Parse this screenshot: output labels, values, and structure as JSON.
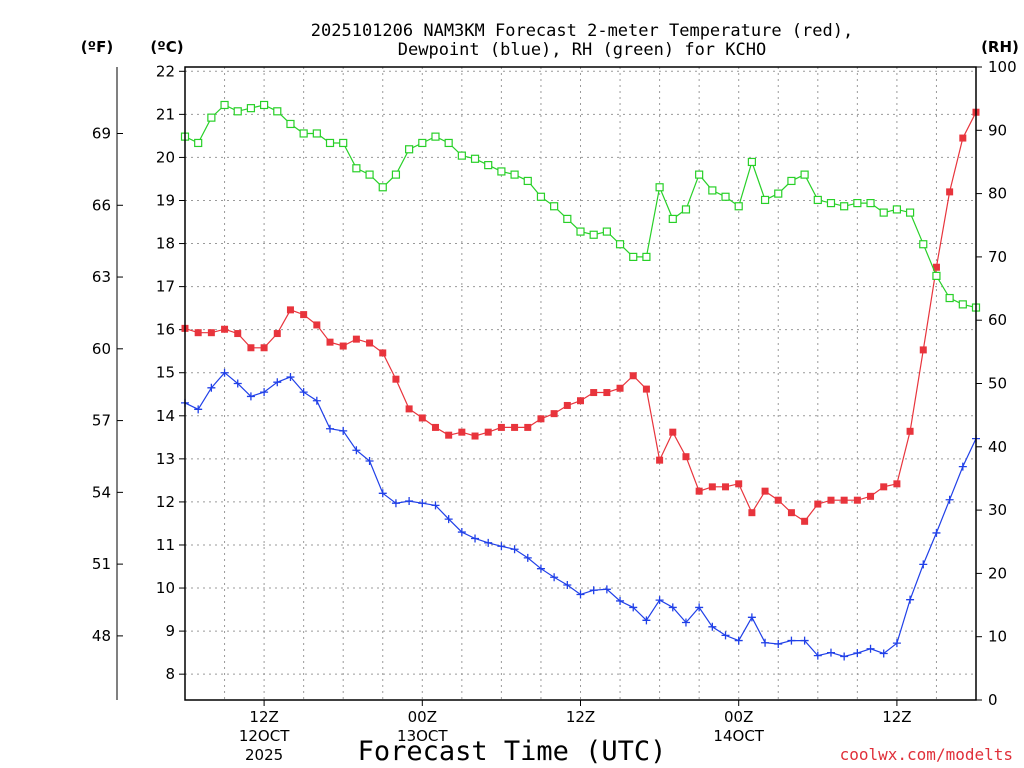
{
  "chart_data": {
    "type": "line",
    "title_line1": "2025101206 NAM3KM Forecast 2-meter Temperature (red),",
    "title_line2": "Dewpoint (blue), RH (green) for KCHO",
    "xlabel": "Forecast Time (UTC)",
    "credit": "coolwx.com/modelts",
    "units": {
      "celsius": "(ºC)",
      "fahrenheit": "(ºF)",
      "rh": "(RH)"
    },
    "celsius_axis": {
      "ylim": [
        7.4,
        22.1
      ],
      "ticks": [
        8,
        9,
        10,
        11,
        12,
        13,
        14,
        15,
        16,
        17,
        18,
        19,
        20,
        21,
        22
      ]
    },
    "fahrenheit_axis": {
      "ticks": [
        48,
        51,
        54,
        57,
        60,
        63,
        66,
        69
      ]
    },
    "rh_axis": {
      "ylim": [
        0,
        100
      ],
      "ticks": [
        0,
        10,
        20,
        30,
        40,
        50,
        60,
        70,
        80,
        90,
        100
      ]
    },
    "x_range_hours": [
      0,
      60
    ],
    "x_ticks": [
      {
        "hour": 6,
        "line1": "12Z",
        "line2": "12OCT",
        "line3": "2025"
      },
      {
        "hour": 18,
        "line1": "00Z",
        "line2": "13OCT",
        "line3": ""
      },
      {
        "hour": 30,
        "line1": "12Z",
        "line2": "",
        "line3": ""
      },
      {
        "hour": 42,
        "line1": "00Z",
        "line2": "14OCT",
        "line3": ""
      },
      {
        "hour": 54,
        "line1": "12Z",
        "line2": "",
        "line3": ""
      }
    ],
    "series": [
      {
        "name": "2-meter Temperature",
        "unit": "C",
        "color": "#e8343c",
        "marker": "filled-square",
        "values": [
          16.03,
          15.93,
          15.93,
          16.01,
          15.91,
          15.58,
          15.58,
          15.91,
          16.46,
          16.35,
          16.11,
          15.71,
          15.62,
          15.78,
          15.69,
          15.46,
          14.85,
          14.16,
          13.95,
          13.73,
          13.55,
          13.62,
          13.53,
          13.62,
          13.73,
          13.73,
          13.73,
          13.93,
          14.05,
          14.24,
          14.35,
          14.54,
          14.54,
          14.64,
          14.93,
          14.62,
          12.97,
          13.62,
          13.05,
          12.25,
          12.35,
          12.35,
          12.42,
          11.75,
          12.25,
          12.04,
          11.75,
          11.55,
          11.95,
          12.04,
          12.04,
          12.04,
          12.13,
          12.35,
          12.42,
          13.64,
          15.53,
          17.45,
          19.2,
          20.45,
          21.05
        ]
      },
      {
        "name": "Dewpoint",
        "unit": "C",
        "color": "#2040e8",
        "marker": "plus",
        "values": [
          14.3,
          14.15,
          14.65,
          15.0,
          14.75,
          14.45,
          14.55,
          14.78,
          14.9,
          14.55,
          14.35,
          13.7,
          13.65,
          13.2,
          12.95,
          12.2,
          11.97,
          12.02,
          11.97,
          11.92,
          11.6,
          11.3,
          11.15,
          11.05,
          10.97,
          10.9,
          10.7,
          10.45,
          10.25,
          10.07,
          9.85,
          9.95,
          9.97,
          9.7,
          9.55,
          9.25,
          9.72,
          9.55,
          9.2,
          9.55,
          9.1,
          8.9,
          8.78,
          9.32,
          8.73,
          8.7,
          8.78,
          8.78,
          8.43,
          8.5,
          8.41,
          8.49,
          8.59,
          8.48,
          8.72,
          9.73,
          10.55,
          11.28,
          12.05,
          12.82,
          13.47
        ]
      },
      {
        "name": "Relative Humidity",
        "unit": "%",
        "color": "#28d028",
        "marker": "open-square",
        "values": [
          89,
          88,
          92,
          94,
          93,
          93.5,
          94,
          93,
          91,
          89.5,
          89.5,
          88,
          88,
          84,
          83,
          81,
          83,
          87,
          88,
          89,
          88,
          86,
          85.5,
          84.5,
          83.5,
          83,
          82,
          79.5,
          78,
          76,
          74,
          73.5,
          74,
          72,
          70,
          70,
          81,
          76,
          77.5,
          83,
          80.5,
          79.5,
          78,
          85,
          79,
          80,
          82,
          83,
          79,
          78.5,
          78,
          78.5,
          78.5,
          77,
          77.5,
          77,
          72,
          67,
          63.5,
          62.5,
          62
        ]
      }
    ]
  }
}
